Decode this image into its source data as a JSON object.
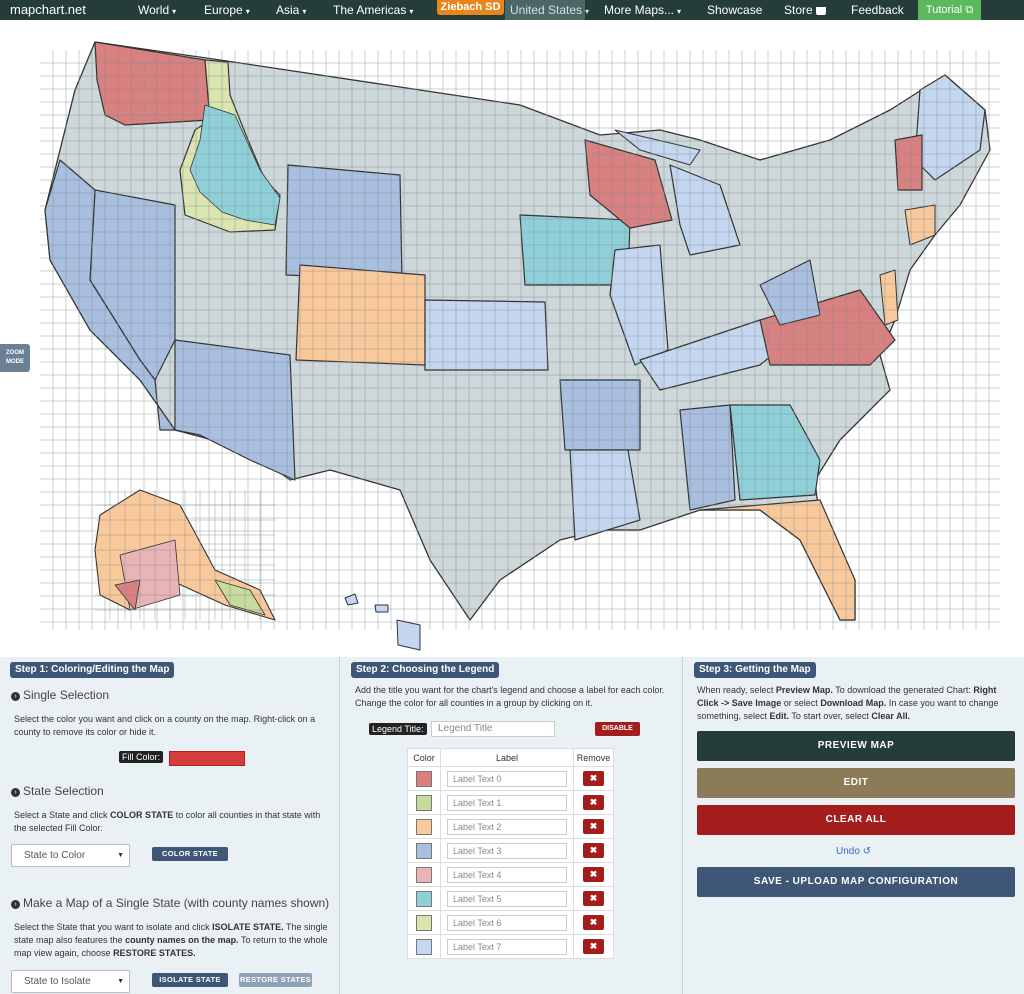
{
  "nav": {
    "brand": "mapchart.net",
    "items": [
      {
        "label": "World",
        "caret": "▾"
      },
      {
        "label": "Europe",
        "caret": "▾"
      },
      {
        "label": "Asia",
        "caret": "▾"
      },
      {
        "label": "The Americas",
        "caret": "▾"
      },
      {
        "label": "United States",
        "caret": "▾"
      },
      {
        "label": "More Maps...",
        "caret": "▾"
      },
      {
        "label": "Showcase",
        "caret": ""
      },
      {
        "label": "Store",
        "caret": ""
      },
      {
        "label": "Feedback",
        "caret": ""
      }
    ],
    "tutorial": "Tutorial",
    "hover_tooltip": "Ziebach SD"
  },
  "map": {
    "zoom_mode": "ZOOM MODE",
    "colors": {
      "red": "#d98080",
      "green": "#c6db9c",
      "orange": "#f9c99c",
      "blue": "#a9bfe0",
      "pink": "#e9b4b4",
      "teal": "#8fd0d8",
      "lightgreen": "#dbe5b0",
      "lightblue": "#c5d7f0",
      "default": "#ced7da",
      "stroke": "#333333"
    }
  },
  "step1": {
    "tag": "Step 1: Coloring/Editing the Map",
    "single": {
      "head": "Single Selection",
      "text": "Select the color you want and click on a county on the map. Right-click on a county to remove its color or hide it.",
      "fill_label": "Fill Color:",
      "fill_color": "#d53c3c"
    },
    "state": {
      "head": "State Selection",
      "text_a": "Select a State and click ",
      "text_b": "COLOR STATE",
      "text_c": " to color all counties in that state with the selected Fill Color.",
      "select": "State to Color",
      "button": "COLOR STATE"
    },
    "single_state": {
      "head": "Make a Map of a Single State (with county names shown)",
      "text_a": "Select the State that you want to isolate and click ",
      "text_b": "ISOLATE STATE.",
      "text_c": " The single state map also features the ",
      "text_d": "county names on the map.",
      "text_e": " To return to the whole map view again, choose ",
      "text_f": "RESTORE STATES.",
      "select": "State to Isolate",
      "isolate": "ISOLATE STATE",
      "restore": "RESTORE STATES"
    }
  },
  "step2": {
    "tag": "Step 2: Choosing the Legend",
    "text": "Add the title you want for the chart's legend and choose a label for each color. Change the color for all counties in a group by clicking on it.",
    "title_label": "Legend Title:",
    "title_placeholder": "Legend Title",
    "disable": "DISABLE",
    "headers": {
      "color": "Color",
      "label": "Label",
      "remove": "Remove"
    },
    "rows": [
      {
        "color": "#d98080",
        "label": "Label Text 0"
      },
      {
        "color": "#c6db9c",
        "label": "Label Text 1"
      },
      {
        "color": "#f9c99c",
        "label": "Label Text 2"
      },
      {
        "color": "#a9bfe0",
        "label": "Label Text 3"
      },
      {
        "color": "#e9b4b4",
        "label": "Label Text 4"
      },
      {
        "color": "#8fd0d8",
        "label": "Label Text 5"
      },
      {
        "color": "#dbe5b0",
        "label": "Label Text 6"
      },
      {
        "color": "#c5d7f0",
        "label": "Label Text 7"
      }
    ],
    "remove_glyph": "✖"
  },
  "step3": {
    "tag": "Step 3: Getting the Map",
    "t1": "When ready, select ",
    "t2": "Preview Map.",
    "t3": " To download the generated Chart: ",
    "t4": "Right Click -> Save Image",
    "t5": " or select ",
    "t6": "Download Map.",
    "t7": " In case you want to change something, select ",
    "t8": "Edit.",
    "t9": " To start over, select ",
    "t10": "Clear All.",
    "preview": "PREVIEW MAP",
    "edit": "EDIT",
    "clear": "CLEAR ALL",
    "undo": "Undo ↺",
    "save": "SAVE - UPLOAD MAP CONFIGURATION"
  }
}
